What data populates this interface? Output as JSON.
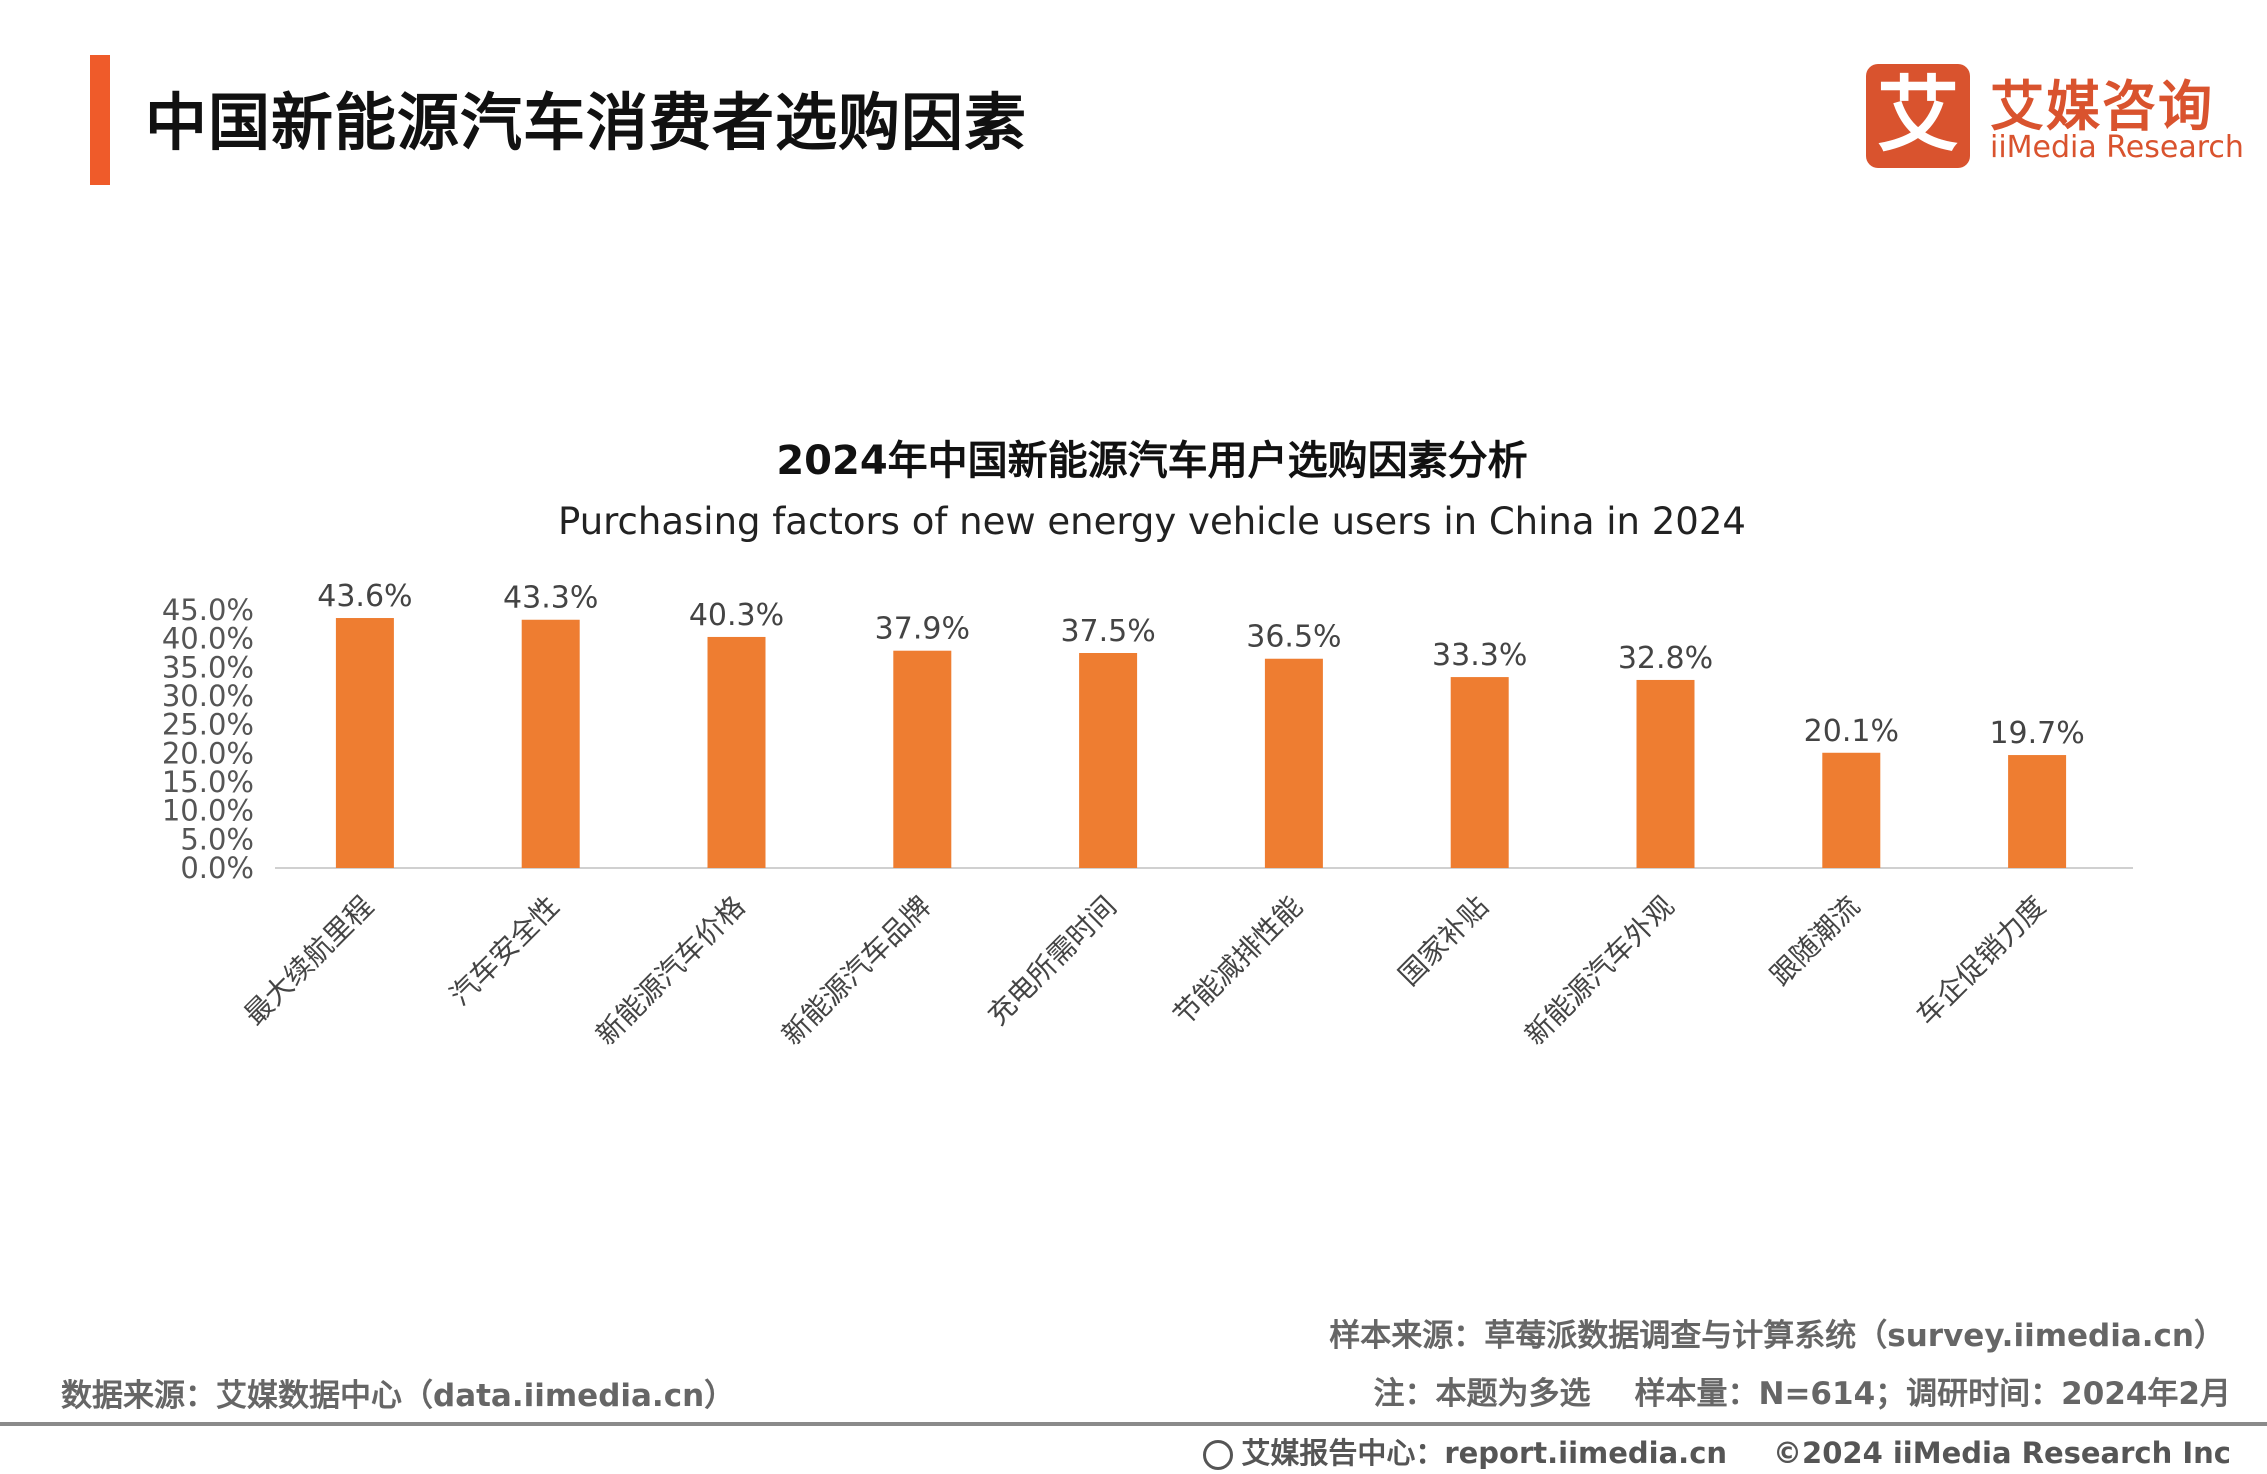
{
  "header": {
    "title": "中国新能源汽车消费者选购因素"
  },
  "logo": {
    "mark": "艾",
    "cn": "艾媒咨询",
    "en": "iiMedia Research"
  },
  "chart_data": {
    "type": "bar",
    "title": "2024年中国新能源汽车用户选购因素分析",
    "subtitle": "Purchasing factors of new energy vehicle users in China in 2024",
    "categories": [
      "最大续航里程",
      "汽车安全性",
      "新能源汽车价格",
      "新能源汽车品牌",
      "充电所需时间",
      "节能减排性能",
      "国家补贴",
      "新能源汽车外观",
      "跟随潮流",
      "车企促销力度"
    ],
    "values": [
      43.6,
      43.3,
      40.3,
      37.9,
      37.5,
      36.5,
      33.3,
      32.8,
      20.1,
      19.7
    ],
    "data_labels": [
      "43.6%",
      "43.3%",
      "40.3%",
      "37.9%",
      "37.5%",
      "36.5%",
      "33.3%",
      "32.8%",
      "20.1%",
      "19.7%"
    ],
    "y_ticks": [
      "0.0%",
      "5.0%",
      "10.0%",
      "15.0%",
      "20.0%",
      "25.0%",
      "30.0%",
      "35.0%",
      "40.0%",
      "45.0%"
    ],
    "ylim": [
      0,
      45
    ],
    "grid": false,
    "bar_color": "#ee7d31"
  },
  "source": {
    "left": "数据来源：艾媒数据中心（data.iimedia.cn）",
    "sample_source": "样本来源：草莓派数据调查与计算系统（survey.iimedia.cn）",
    "note": "注：本题为多选",
    "sample_info": "样本量：N=614；调研时间：2024年2月"
  },
  "footer": {
    "report_center": "艾媒报告中心：report.iimedia.cn",
    "copyright": "©2024  iiMedia Research  Inc"
  }
}
